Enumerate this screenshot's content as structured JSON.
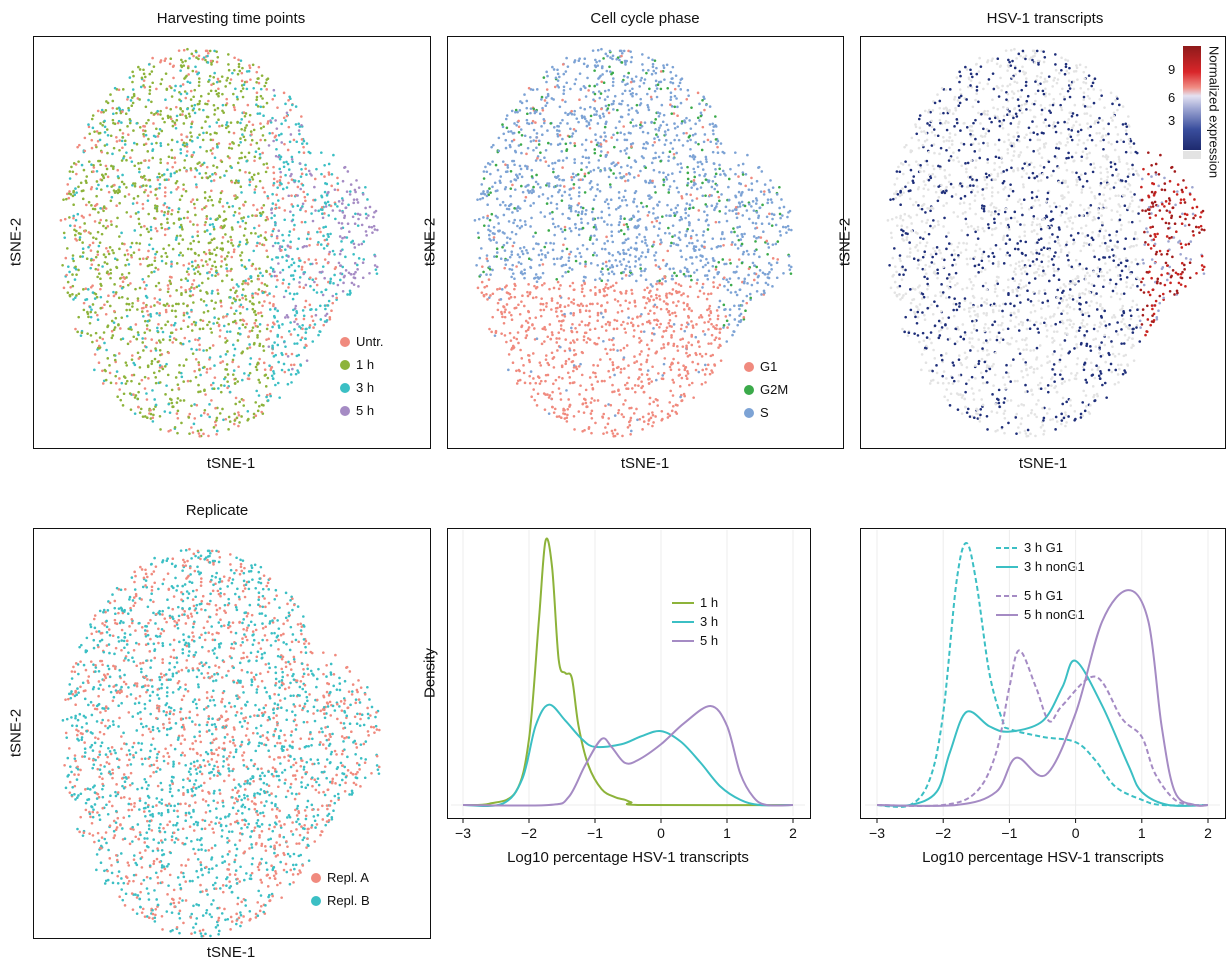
{
  "panels": {
    "p1": {
      "title": "Harvesting time points",
      "xlabel": "tSNE-1",
      "ylabel": "tSNE-2",
      "legend": [
        {
          "label": "Untr.",
          "color": "#F08A7E"
        },
        {
          "label": "1 h",
          "color": "#8DB33A"
        },
        {
          "label": "3 h",
          "color": "#3BBFC4"
        },
        {
          "label": "5 h",
          "color": "#A58BC4"
        }
      ]
    },
    "p2": {
      "title": "Cell cycle phase",
      "xlabel": "tSNE-1",
      "ylabel": "tSNE-2",
      "legend": [
        {
          "label": "G1",
          "color": "#F08A7E"
        },
        {
          "label": "G2M",
          "color": "#3BAA4A"
        },
        {
          "label": "S",
          "color": "#7DA3D5"
        }
      ]
    },
    "p3": {
      "title": "HSV-1 transcripts",
      "xlabel": "tSNE-1",
      "ylabel": "tSNE-2",
      "colorbar": {
        "title": "Normalized expression",
        "ticks": [
          "9",
          "6",
          "3"
        ],
        "low": "#1F2F7A",
        "mid": "#DCDCEE",
        "high": "#A11D1D",
        "na": "#E3E3E3"
      }
    },
    "p4": {
      "title": "Replicate",
      "xlabel": "tSNE-1",
      "ylabel": "tSNE-2",
      "legend": [
        {
          "label": "Repl. A",
          "color": "#F08A7E"
        },
        {
          "label": "Repl. B",
          "color": "#3BBFC4"
        }
      ]
    }
  },
  "chart_data": [
    {
      "type": "scatter",
      "title": "Harvesting time points",
      "xlabel": "tSNE-1",
      "ylabel": "tSNE-2",
      "legend": [
        "Untr.",
        "1 h",
        "3 h",
        "5 h"
      ],
      "legend_placement": "bottom-right"
    },
    {
      "type": "scatter",
      "title": "Cell cycle phase",
      "xlabel": "tSNE-1",
      "ylabel": "tSNE-2",
      "legend": [
        "G1",
        "G2M",
        "S"
      ],
      "legend_placement": "bottom-right"
    },
    {
      "type": "scatter",
      "title": "HSV-1 transcripts",
      "xlabel": "tSNE-1",
      "ylabel": "tSNE-2",
      "colorbar_ticks": [
        3,
        6,
        9
      ],
      "legend_placement": "top-right"
    },
    {
      "type": "scatter",
      "title": "Replicate",
      "xlabel": "tSNE-1",
      "ylabel": "tSNE-2",
      "legend": [
        "Repl. A",
        "Repl. B"
      ],
      "legend_placement": "bottom-right"
    },
    {
      "type": "line",
      "xlabel": "Log10 percentage HSV-1 transcripts",
      "ylabel": "Density",
      "xlim": [
        -3,
        2
      ],
      "xticks": [
        "−3",
        "−2",
        "−1",
        "0",
        "1",
        "2"
      ],
      "grid": true,
      "legend_placement": "top-right",
      "series": [
        {
          "name": "1 h",
          "color": "#8DB33A",
          "dash": false,
          "points": [
            [
              -3,
              0
            ],
            [
              -2.6,
              0.005
            ],
            [
              -2.2,
              0.05
            ],
            [
              -2,
              0.25
            ],
            [
              -1.85,
              0.7
            ],
            [
              -1.75,
              1.0
            ],
            [
              -1.65,
              0.9
            ],
            [
              -1.55,
              0.55
            ],
            [
              -1.45,
              0.5
            ],
            [
              -1.35,
              0.48
            ],
            [
              -1.25,
              0.3
            ],
            [
              -1.1,
              0.15
            ],
            [
              -0.9,
              0.06
            ],
            [
              -0.7,
              0.03
            ],
            [
              -0.55,
              0.02
            ],
            [
              -0.45,
              0.01
            ],
            [
              -0.3,
              0
            ],
            [
              2,
              0
            ]
          ]
        },
        {
          "name": "3 h",
          "color": "#3BBFC4",
          "dash": false,
          "points": [
            [
              -3,
              0
            ],
            [
              -2.4,
              0.005
            ],
            [
              -2.1,
              0.1
            ],
            [
              -1.9,
              0.3
            ],
            [
              -1.7,
              0.38
            ],
            [
              -1.45,
              0.32
            ],
            [
              -1.2,
              0.25
            ],
            [
              -1,
              0.22
            ],
            [
              -0.6,
              0.23
            ],
            [
              -0.3,
              0.26
            ],
            [
              0,
              0.28
            ],
            [
              0.3,
              0.24
            ],
            [
              0.6,
              0.16
            ],
            [
              0.9,
              0.07
            ],
            [
              1.2,
              0.02
            ],
            [
              1.5,
              0
            ],
            [
              2,
              0
            ]
          ]
        },
        {
          "name": "5 h",
          "color": "#A58BC4",
          "dash": false,
          "points": [
            [
              -3,
              0
            ],
            [
              -1.7,
              0
            ],
            [
              -1.4,
              0.03
            ],
            [
              -1.15,
              0.15
            ],
            [
              -0.9,
              0.25
            ],
            [
              -0.75,
              0.22
            ],
            [
              -0.55,
              0.16
            ],
            [
              -0.35,
              0.17
            ],
            [
              0,
              0.23
            ],
            [
              0.35,
              0.31
            ],
            [
              0.75,
              0.375
            ],
            [
              1.0,
              0.3
            ],
            [
              1.2,
              0.12
            ],
            [
              1.4,
              0.03
            ],
            [
              1.6,
              0
            ],
            [
              2,
              0
            ]
          ]
        }
      ]
    },
    {
      "type": "line",
      "xlabel": "Log10 percentage HSV-1 transcripts",
      "xlim": [
        -3,
        2
      ],
      "xticks": [
        "−3",
        "−2",
        "−1",
        "0",
        "1",
        "2"
      ],
      "grid": true,
      "legend_placement": "top",
      "series": [
        {
          "name": "3 h G1",
          "color": "#3BBFC4",
          "dash": true,
          "points": [
            [
              -3,
              0
            ],
            [
              -2.5,
              0
            ],
            [
              -2.2,
              0.1
            ],
            [
              -2,
              0.35
            ],
            [
              -1.8,
              0.85
            ],
            [
              -1.65,
              1.0
            ],
            [
              -1.5,
              0.85
            ],
            [
              -1.3,
              0.5
            ],
            [
              -1.1,
              0.32
            ],
            [
              -1,
              0.29
            ],
            [
              -0.5,
              0.26
            ],
            [
              0,
              0.24
            ],
            [
              0.3,
              0.17
            ],
            [
              0.6,
              0.07
            ],
            [
              1,
              0.02
            ],
            [
              1.3,
              0
            ],
            [
              2,
              0
            ]
          ]
        },
        {
          "name": "3 h nonG1",
          "color": "#3BBFC4",
          "dash": false,
          "points": [
            [
              -3,
              0
            ],
            [
              -2.5,
              0
            ],
            [
              -2.1,
              0.05
            ],
            [
              -1.9,
              0.2
            ],
            [
              -1.65,
              0.355
            ],
            [
              -1.3,
              0.3
            ],
            [
              -1,
              0.28
            ],
            [
              -0.5,
              0.32
            ],
            [
              -0.2,
              0.45
            ],
            [
              0,
              0.55
            ],
            [
              0.4,
              0.38
            ],
            [
              0.8,
              0.15
            ],
            [
              1,
              0.05
            ],
            [
              1.4,
              0
            ],
            [
              2,
              0
            ]
          ]
        },
        {
          "name": "5 h G1",
          "color": "#A58BC4",
          "dash": true,
          "points": [
            [
              -3,
              0
            ],
            [
              -2,
              0
            ],
            [
              -1.5,
              0.05
            ],
            [
              -1.2,
              0.2
            ],
            [
              -1,
              0.45
            ],
            [
              -0.85,
              0.59
            ],
            [
              -0.6,
              0.45
            ],
            [
              -0.4,
              0.32
            ],
            [
              -0.2,
              0.38
            ],
            [
              0.3,
              0.49
            ],
            [
              0.7,
              0.33
            ],
            [
              1,
              0.26
            ],
            [
              1.2,
              0.12
            ],
            [
              1.5,
              0.02
            ],
            [
              1.8,
              0
            ],
            [
              2,
              0
            ]
          ]
        },
        {
          "name": "5 h nonG1",
          "color": "#A58BC4",
          "dash": false,
          "points": [
            [
              -3,
              0
            ],
            [
              -1.8,
              0
            ],
            [
              -1.2,
              0.05
            ],
            [
              -0.9,
              0.18
            ],
            [
              -0.45,
              0.115
            ],
            [
              0,
              0.35
            ],
            [
              0.4,
              0.7
            ],
            [
              0.8,
              0.82
            ],
            [
              1.1,
              0.7
            ],
            [
              1.3,
              0.3
            ],
            [
              1.5,
              0.05
            ],
            [
              1.8,
              0
            ],
            [
              2,
              0
            ]
          ]
        }
      ]
    }
  ]
}
